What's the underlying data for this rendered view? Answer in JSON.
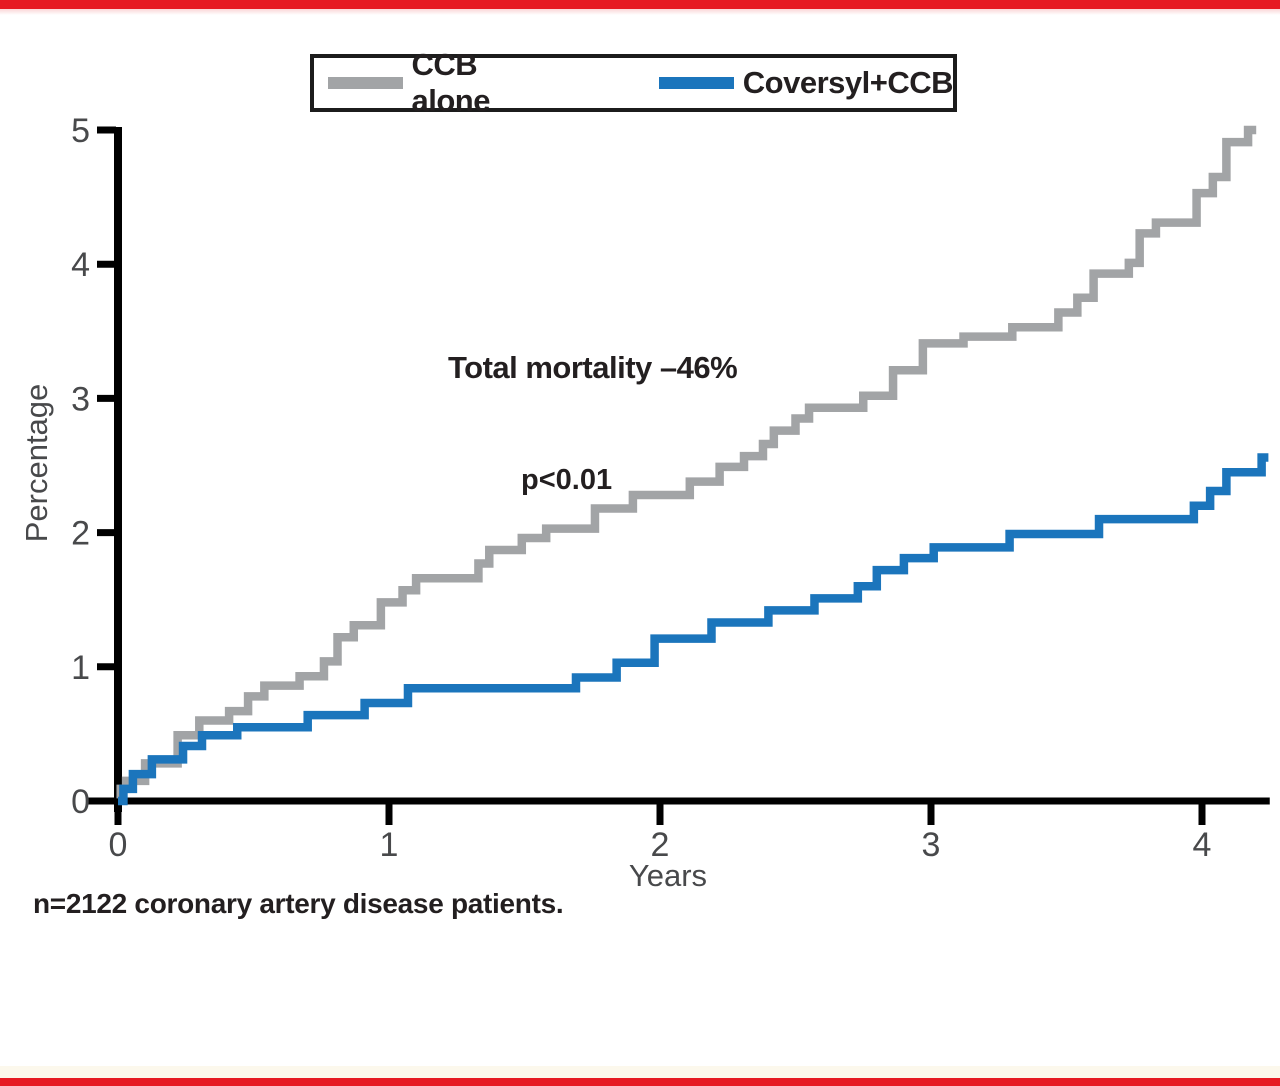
{
  "page": {
    "accent_red": "#e61a23",
    "axis_color": "#000000",
    "tick_text_color": "#48494b",
    "text_color": "#231f20"
  },
  "legend": {
    "items": [
      {
        "label": "CCB alone",
        "color": "#a2a4a6"
      },
      {
        "label": "Coversyl+CCB",
        "color": "#1b75bc"
      }
    ]
  },
  "annotations": {
    "effect": "Total mortality –46%",
    "p_value": "p<0.01"
  },
  "footnote": "n=2122 coronary artery disease patients.",
  "chart_data": {
    "type": "line",
    "subtype": "step",
    "title": "",
    "xlabel": "Years",
    "ylabel": "Percentage",
    "xlim": [
      0,
      4.25
    ],
    "ylim": [
      0,
      5
    ],
    "xticks": [
      0,
      1,
      2,
      3,
      4
    ],
    "yticks": [
      0,
      1,
      2,
      3,
      4,
      5
    ],
    "grid": false,
    "legend_position": "top",
    "series": [
      {
        "name": "CCB alone",
        "color": "#a2a4a6",
        "end_x": 4.2,
        "points": [
          [
            0,
            0.02
          ],
          [
            0.01,
            0.09
          ],
          [
            0.03,
            0.15
          ],
          [
            0.1,
            0.28
          ],
          [
            0.22,
            0.49
          ],
          [
            0.3,
            0.6
          ],
          [
            0.41,
            0.67
          ],
          [
            0.48,
            0.78
          ],
          [
            0.54,
            0.86
          ],
          [
            0.67,
            0.93
          ],
          [
            0.76,
            1.04
          ],
          [
            0.81,
            1.22
          ],
          [
            0.87,
            1.31
          ],
          [
            0.97,
            1.48
          ],
          [
            1.05,
            1.57
          ],
          [
            1.1,
            1.66
          ],
          [
            1.33,
            1.77
          ],
          [
            1.37,
            1.87
          ],
          [
            1.49,
            1.96
          ],
          [
            1.58,
            2.03
          ],
          [
            1.76,
            2.18
          ],
          [
            1.9,
            2.28
          ],
          [
            2.11,
            2.38
          ],
          [
            2.22,
            2.49
          ],
          [
            2.31,
            2.57
          ],
          [
            2.38,
            2.66
          ],
          [
            2.42,
            2.76
          ],
          [
            2.5,
            2.85
          ],
          [
            2.55,
            2.93
          ],
          [
            2.75,
            3.02
          ],
          [
            2.86,
            3.21
          ],
          [
            2.97,
            3.41
          ],
          [
            3.12,
            3.46
          ],
          [
            3.3,
            3.53
          ],
          [
            3.47,
            3.64
          ],
          [
            3.54,
            3.75
          ],
          [
            3.6,
            3.93
          ],
          [
            3.73,
            4.01
          ],
          [
            3.77,
            4.23
          ],
          [
            3.83,
            4.31
          ],
          [
            3.98,
            4.53
          ],
          [
            4.04,
            4.65
          ],
          [
            4.09,
            4.91
          ],
          [
            4.17,
            5.0
          ]
        ]
      },
      {
        "name": "Coversyl+CCB",
        "color": "#1b75bc",
        "end_x": 4.245,
        "points": [
          [
            0,
            0.0
          ],
          [
            0.02,
            0.09
          ],
          [
            0.055,
            0.2
          ],
          [
            0.125,
            0.31
          ],
          [
            0.24,
            0.41
          ],
          [
            0.31,
            0.49
          ],
          [
            0.44,
            0.55
          ],
          [
            0.7,
            0.64
          ],
          [
            0.91,
            0.73
          ],
          [
            1.07,
            0.84
          ],
          [
            1.69,
            0.92
          ],
          [
            1.84,
            1.03
          ],
          [
            1.98,
            1.21
          ],
          [
            2.19,
            1.33
          ],
          [
            2.4,
            1.42
          ],
          [
            2.57,
            1.51
          ],
          [
            2.73,
            1.6
          ],
          [
            2.8,
            1.72
          ],
          [
            2.9,
            1.81
          ],
          [
            3.01,
            1.89
          ],
          [
            3.29,
            1.99
          ],
          [
            3.62,
            2.1
          ],
          [
            3.97,
            2.2
          ],
          [
            4.03,
            2.31
          ],
          [
            4.09,
            2.45
          ],
          [
            4.22,
            2.56
          ]
        ]
      }
    ]
  }
}
